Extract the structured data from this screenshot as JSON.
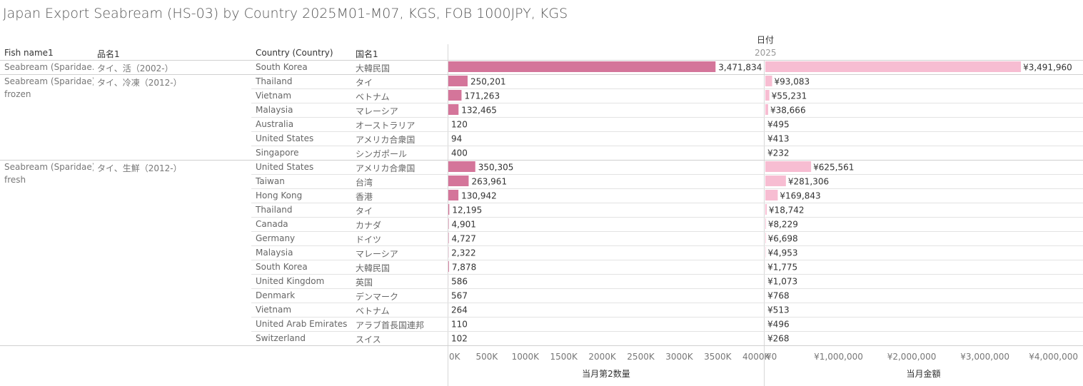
{
  "title": "Japan Export Seabream (HS-03) by Country 2025M01-M07, KGS, FOB 1000JPY, KGS",
  "headers": {
    "fish_name": "Fish name1",
    "item_name": "品名1",
    "country": "Country (Country)",
    "country_jp": "国名1",
    "date": "日付",
    "year": "2025"
  },
  "groups": [
    {
      "fish_lines": [
        "Seabream (Sparidae.."
      ],
      "item": "タイ、活（2002-）"
    },
    {
      "fish_lines": [
        "Seabream (Sparidae),",
        "frozen"
      ],
      "item": "タイ、冷凍（2012-）"
    },
    {
      "fish_lines": [
        "Seabream (Sparidae),",
        "fresh"
      ],
      "item": "タイ、生鮮（2012-）"
    }
  ],
  "chart_data": {
    "type": "bar",
    "orientation": "horizontal",
    "rows": [
      {
        "group": 0,
        "country": "South Korea",
        "country_jp": "大韓民国",
        "qty": 3471834,
        "qty_label": "3,471,834",
        "amount": 3491960,
        "amount_label": "¥3,491,960"
      },
      {
        "group": 1,
        "country": "Thailand",
        "country_jp": "タイ",
        "qty": 250201,
        "qty_label": "250,201",
        "amount": 93083,
        "amount_label": "¥93,083"
      },
      {
        "group": 1,
        "country": "Vietnam",
        "country_jp": "ベトナム",
        "qty": 171263,
        "qty_label": "171,263",
        "amount": 55231,
        "amount_label": "¥55,231"
      },
      {
        "group": 1,
        "country": "Malaysia",
        "country_jp": "マレーシア",
        "qty": 132465,
        "qty_label": "132,465",
        "amount": 38666,
        "amount_label": "¥38,666"
      },
      {
        "group": 1,
        "country": "Australia",
        "country_jp": "オーストラリア",
        "qty": 120,
        "qty_label": "120",
        "amount": 495,
        "amount_label": "¥495"
      },
      {
        "group": 1,
        "country": "United States",
        "country_jp": "アメリカ合衆国",
        "qty": 94,
        "qty_label": "94",
        "amount": 413,
        "amount_label": "¥413"
      },
      {
        "group": 1,
        "country": "Singapore",
        "country_jp": "シンガポール",
        "qty": 400,
        "qty_label": "400",
        "amount": 232,
        "amount_label": "¥232"
      },
      {
        "group": 2,
        "country": "United States",
        "country_jp": "アメリカ合衆国",
        "qty": 350305,
        "qty_label": "350,305",
        "amount": 625561,
        "amount_label": "¥625,561"
      },
      {
        "group": 2,
        "country": "Taiwan",
        "country_jp": "台湾",
        "qty": 263961,
        "qty_label": "263,961",
        "amount": 281306,
        "amount_label": "¥281,306"
      },
      {
        "group": 2,
        "country": "Hong Kong",
        "country_jp": "香港",
        "qty": 130942,
        "qty_label": "130,942",
        "amount": 169843,
        "amount_label": "¥169,843"
      },
      {
        "group": 2,
        "country": "Thailand",
        "country_jp": "タイ",
        "qty": 12195,
        "qty_label": "12,195",
        "amount": 18742,
        "amount_label": "¥18,742"
      },
      {
        "group": 2,
        "country": "Canada",
        "country_jp": "カナダ",
        "qty": 4901,
        "qty_label": "4,901",
        "amount": 8229,
        "amount_label": "¥8,229"
      },
      {
        "group": 2,
        "country": "Germany",
        "country_jp": "ドイツ",
        "qty": 4727,
        "qty_label": "4,727",
        "amount": 6698,
        "amount_label": "¥6,698"
      },
      {
        "group": 2,
        "country": "Malaysia",
        "country_jp": "マレーシア",
        "qty": 2322,
        "qty_label": "2,322",
        "amount": 4953,
        "amount_label": "¥4,953"
      },
      {
        "group": 2,
        "country": "South Korea",
        "country_jp": "大韓民国",
        "qty": 7878,
        "qty_label": "7,878",
        "amount": 1775,
        "amount_label": "¥1,775"
      },
      {
        "group": 2,
        "country": "United Kingdom",
        "country_jp": "英国",
        "qty": 586,
        "qty_label": "586",
        "amount": 1073,
        "amount_label": "¥1,073"
      },
      {
        "group": 2,
        "country": "Denmark",
        "country_jp": "デンマーク",
        "qty": 567,
        "qty_label": "567",
        "amount": 768,
        "amount_label": "¥768"
      },
      {
        "group": 2,
        "country": "Vietnam",
        "country_jp": "ベトナム",
        "qty": 264,
        "qty_label": "264",
        "amount": 513,
        "amount_label": "¥513"
      },
      {
        "group": 2,
        "country": "United Arab Emirates",
        "country_jp": "アラブ首長国連邦",
        "qty": 110,
        "qty_label": "110",
        "amount": 496,
        "amount_label": "¥496"
      },
      {
        "group": 2,
        "country": "Switzerland",
        "country_jp": "スイス",
        "qty": 102,
        "qty_label": "102",
        "amount": 268,
        "amount_label": "¥268"
      }
    ],
    "qty_axis": {
      "label": "当月第2数量",
      "ticks": [
        0,
        500000,
        1000000,
        1500000,
        2000000,
        2500000,
        3000000,
        3500000,
        4000000
      ],
      "tick_labels": [
        "0K",
        "500K",
        "1000K",
        "1500K",
        "2000K",
        "2500K",
        "3000K",
        "3500K",
        "4000K"
      ],
      "range": [
        0,
        4100000
      ],
      "color": "#d4759a"
    },
    "amount_axis": {
      "label": "当月金額",
      "ticks": [
        0,
        1000000,
        2000000,
        3000000,
        4000000
      ],
      "tick_labels": [
        "¥0",
        "¥1,000,000",
        "¥2,000,000",
        "¥3,000,000",
        "¥4,000,000"
      ],
      "range": [
        0,
        4320000
      ],
      "color": "#f7bdd2"
    }
  }
}
